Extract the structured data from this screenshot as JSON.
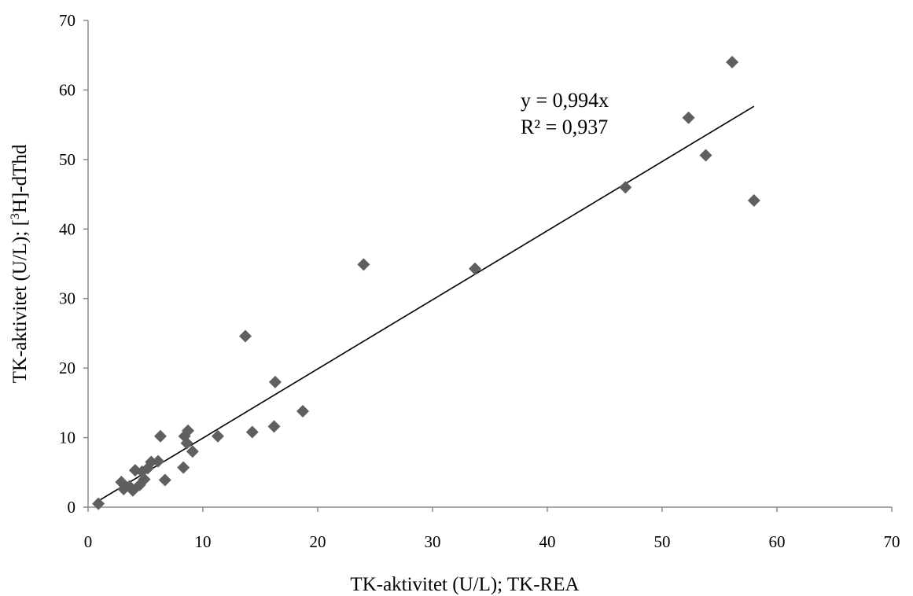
{
  "chart_data": {
    "type": "scatter",
    "title": "",
    "xlabel": "TK-aktivitet (U/L); TK-REA",
    "ylabel_main": "TK-aktivitet (U/L); [",
    "ylabel_sup": "3",
    "ylabel_end": "H]-dThd",
    "xlim": [
      0,
      70
    ],
    "ylim": [
      0,
      70
    ],
    "xticks": [
      0,
      10,
      20,
      30,
      40,
      50,
      60,
      70
    ],
    "yticks": [
      0,
      10,
      20,
      30,
      40,
      50,
      60,
      70
    ],
    "grid": false,
    "legend": "none",
    "marker": "diamond",
    "marker_color": "#5f5f5f",
    "trendline": {
      "type": "linear",
      "slope": 0.994,
      "x_range": [
        0.9,
        58
      ],
      "equation": "y = 0,994x",
      "r2_label": "R² = 0,937",
      "color": "#000000"
    },
    "points": [
      {
        "x": 0.9,
        "y": 0.5
      },
      {
        "x": 2.9,
        "y": 3.6
      },
      {
        "x": 3.1,
        "y": 2.6
      },
      {
        "x": 3.6,
        "y": 3.0
      },
      {
        "x": 3.9,
        "y": 2.4
      },
      {
        "x": 4.1,
        "y": 5.3
      },
      {
        "x": 4.5,
        "y": 3.2
      },
      {
        "x": 4.7,
        "y": 5.1
      },
      {
        "x": 4.9,
        "y": 4.0
      },
      {
        "x": 5.2,
        "y": 5.6
      },
      {
        "x": 5.5,
        "y": 6.5
      },
      {
        "x": 6.1,
        "y": 6.6
      },
      {
        "x": 6.3,
        "y": 10.2
      },
      {
        "x": 6.7,
        "y": 3.9
      },
      {
        "x": 8.3,
        "y": 5.7
      },
      {
        "x": 8.4,
        "y": 10.2
      },
      {
        "x": 8.7,
        "y": 11.0
      },
      {
        "x": 8.6,
        "y": 9.2
      },
      {
        "x": 9.1,
        "y": 8.0
      },
      {
        "x": 11.3,
        "y": 10.2
      },
      {
        "x": 13.7,
        "y": 24.6
      },
      {
        "x": 14.3,
        "y": 10.8
      },
      {
        "x": 16.2,
        "y": 11.6
      },
      {
        "x": 16.3,
        "y": 18.0
      },
      {
        "x": 18.7,
        "y": 13.8
      },
      {
        "x": 24.0,
        "y": 34.9
      },
      {
        "x": 33.7,
        "y": 34.3
      },
      {
        "x": 46.8,
        "y": 46.0
      },
      {
        "x": 52.3,
        "y": 56.0
      },
      {
        "x": 53.8,
        "y": 50.6
      },
      {
        "x": 56.1,
        "y": 64.0
      },
      {
        "x": 58.0,
        "y": 44.1
      }
    ]
  }
}
